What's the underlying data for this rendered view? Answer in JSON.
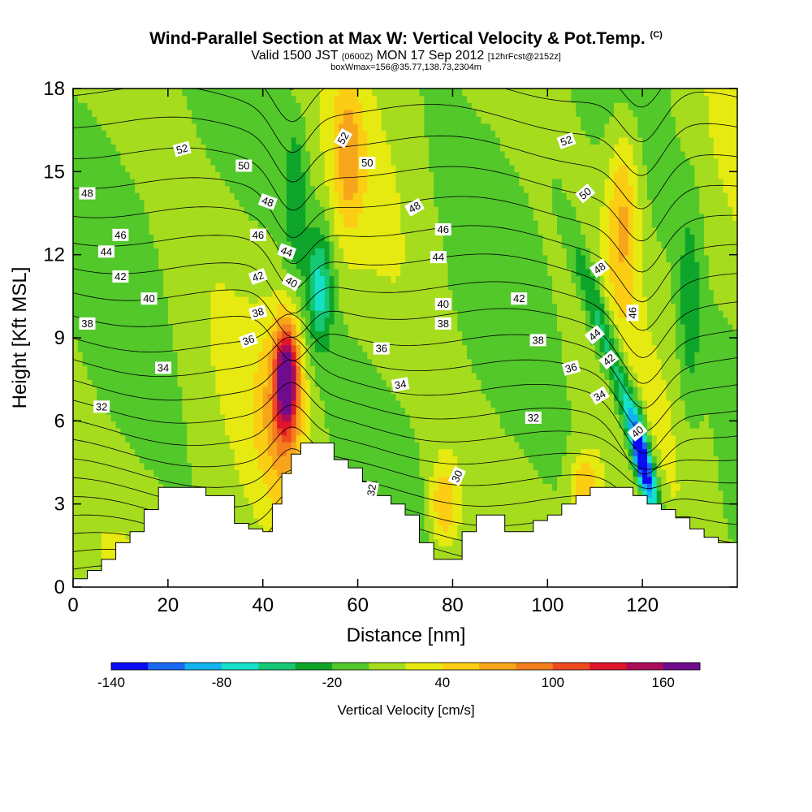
{
  "title": {
    "main": "Wind-Parallel Section at Max W: Vertical Velocity & Pot.Temp.",
    "copyright": "(C)",
    "valid_prefix": "Valid 1500 JST",
    "utc": "(0600Z)",
    "valid_date": "MON 17 Sep 2012",
    "forecast": "[12hrFcst@2152z]",
    "box_info": "boxWmax=156@35.77,138.73,2304m"
  },
  "colors": {
    "palette": [
      "#0b0bf5",
      "#1a68f5",
      "#10b3f0",
      "#15e0c8",
      "#16c873",
      "#0ea52a",
      "#52c82a",
      "#a6dc1e",
      "#e6ea10",
      "#fbce14",
      "#f7a51b",
      "#f47d1e",
      "#ef4a1e",
      "#e0152a",
      "#ab0d5a",
      "#6f0c8d"
    ],
    "terrain": "#ffffff"
  },
  "chart_data": {
    "type": "heatmap",
    "xlabel": "Distance [nm]",
    "ylabel": "Height [Kft MSL]",
    "xlim": [
      0,
      140
    ],
    "ylim": [
      0,
      18
    ],
    "xticks": [
      0,
      20,
      40,
      60,
      80,
      100,
      120
    ],
    "yticks": [
      0,
      3,
      6,
      9,
      12,
      15,
      18
    ],
    "colorbar": {
      "label": "Vertical Velocity [cm/s]",
      "levels": [
        -140,
        -120,
        -100,
        -80,
        -60,
        -40,
        -20,
        0,
        20,
        40,
        60,
        80,
        100,
        120,
        140,
        160,
        180
      ],
      "tick_labels": [
        -140,
        -80,
        -20,
        40,
        100,
        160
      ]
    },
    "vertical_velocity_features": [
      {
        "name": "updraft",
        "x": 45,
        "y": 7.5,
        "peak": 156
      },
      {
        "name": "downdraft",
        "x": 120,
        "y": 4.6,
        "peak": -150
      },
      {
        "name": "descent",
        "x": 52,
        "y": 10.5,
        "peak": -70
      },
      {
        "name": "updraft",
        "x": 58,
        "y": 15,
        "peak": 50
      },
      {
        "name": "updraft",
        "x": 115,
        "y": 14,
        "peak": 60
      },
      {
        "name": "updraft",
        "x": 78,
        "y": 3,
        "peak": 50
      },
      {
        "name": "updraft",
        "x": 108,
        "y": 3.5,
        "peak": 60
      }
    ],
    "terrain_profile": {
      "x": [
        0,
        3,
        6,
        9,
        12,
        15,
        18,
        20,
        22,
        25,
        28,
        31,
        34,
        37,
        40,
        42,
        44,
        46,
        48,
        50,
        52,
        55,
        58,
        61,
        64,
        67,
        70,
        73,
        76,
        79,
        82,
        85,
        88,
        91,
        94,
        97,
        100,
        103,
        106,
        109,
        112,
        115,
        118,
        121,
        124,
        127,
        130,
        133,
        136,
        139
      ],
      "height": [
        0.3,
        0.6,
        1.0,
        1.6,
        2.0,
        2.8,
        3.6,
        3.6,
        3.6,
        3.6,
        3.3,
        3.3,
        2.3,
        2.1,
        2.0,
        3.0,
        4.1,
        4.8,
        5.2,
        5.2,
        5.2,
        4.6,
        4.3,
        3.8,
        3.3,
        3.0,
        2.6,
        1.6,
        1.0,
        1.0,
        2.0,
        2.6,
        2.6,
        2.0,
        2.0,
        2.4,
        2.6,
        3.0,
        3.3,
        3.6,
        3.6,
        3.6,
        3.3,
        3.0,
        2.8,
        2.5,
        2.1,
        1.8,
        1.6,
        1.6
      ]
    },
    "pot_temp_contour_labels": [
      {
        "text": "52",
        "x": 23,
        "y": 15.8,
        "rot": -15
      },
      {
        "text": "50",
        "x": 36,
        "y": 15.2,
        "rot": 0
      },
      {
        "text": "48",
        "x": 3,
        "y": 14.2,
        "rot": 0
      },
      {
        "text": "48",
        "x": 41,
        "y": 13.9,
        "rot": 20
      },
      {
        "text": "46",
        "x": 10,
        "y": 12.7,
        "rot": 0
      },
      {
        "text": "46",
        "x": 39,
        "y": 12.7,
        "rot": 0
      },
      {
        "text": "44",
        "x": 7,
        "y": 12.1,
        "rot": 0
      },
      {
        "text": "44",
        "x": 45,
        "y": 12.1,
        "rot": 20
      },
      {
        "text": "42",
        "x": 10,
        "y": 11.2,
        "rot": 0
      },
      {
        "text": "42",
        "x": 39,
        "y": 11.2,
        "rot": -20
      },
      {
        "text": "40",
        "x": 16,
        "y": 10.4,
        "rot": 0
      },
      {
        "text": "40",
        "x": 46,
        "y": 11.0,
        "rot": 30
      },
      {
        "text": "38",
        "x": 3,
        "y": 9.5,
        "rot": 0
      },
      {
        "text": "38",
        "x": 39,
        "y": 9.9,
        "rot": -15
      },
      {
        "text": "36",
        "x": 37,
        "y": 8.9,
        "rot": -20
      },
      {
        "text": "34",
        "x": 19,
        "y": 7.9,
        "rot": 0
      },
      {
        "text": "32",
        "x": 6,
        "y": 6.5,
        "rot": 0
      },
      {
        "text": "52",
        "x": 57,
        "y": 16.2,
        "rot": -60
      },
      {
        "text": "50",
        "x": 62,
        "y": 15.3,
        "rot": 0
      },
      {
        "text": "48",
        "x": 72,
        "y": 13.7,
        "rot": -30
      },
      {
        "text": "46",
        "x": 78,
        "y": 12.9,
        "rot": 0
      },
      {
        "text": "44",
        "x": 77,
        "y": 11.9,
        "rot": 0
      },
      {
        "text": "40",
        "x": 78,
        "y": 10.2,
        "rot": 0
      },
      {
        "text": "38",
        "x": 78,
        "y": 9.5,
        "rot": 0
      },
      {
        "text": "36",
        "x": 65,
        "y": 8.6,
        "rot": 0
      },
      {
        "text": "34",
        "x": 69,
        "y": 7.3,
        "rot": -10
      },
      {
        "text": "30",
        "x": 81,
        "y": 4.0,
        "rot": -65
      },
      {
        "text": "32",
        "x": 63,
        "y": 3.5,
        "rot": -80
      },
      {
        "text": "42",
        "x": 94,
        "y": 10.4,
        "rot": 0
      },
      {
        "text": "38",
        "x": 98,
        "y": 8.9,
        "rot": 0
      },
      {
        "text": "36",
        "x": 105,
        "y": 7.9,
        "rot": -15
      },
      {
        "text": "34",
        "x": 111,
        "y": 6.9,
        "rot": -30
      },
      {
        "text": "32",
        "x": 97,
        "y": 6.1,
        "rot": 0
      },
      {
        "text": "52",
        "x": 104,
        "y": 16.1,
        "rot": -20
      },
      {
        "text": "50",
        "x": 108,
        "y": 14.2,
        "rot": -40
      },
      {
        "text": "48",
        "x": 111,
        "y": 11.5,
        "rot": -35
      },
      {
        "text": "46",
        "x": 118,
        "y": 9.9,
        "rot": -90
      },
      {
        "text": "44",
        "x": 110,
        "y": 9.1,
        "rot": -40
      },
      {
        "text": "42",
        "x": 113,
        "y": 8.2,
        "rot": -40
      },
      {
        "text": "40",
        "x": 119,
        "y": 5.6,
        "rot": -40
      }
    ]
  }
}
